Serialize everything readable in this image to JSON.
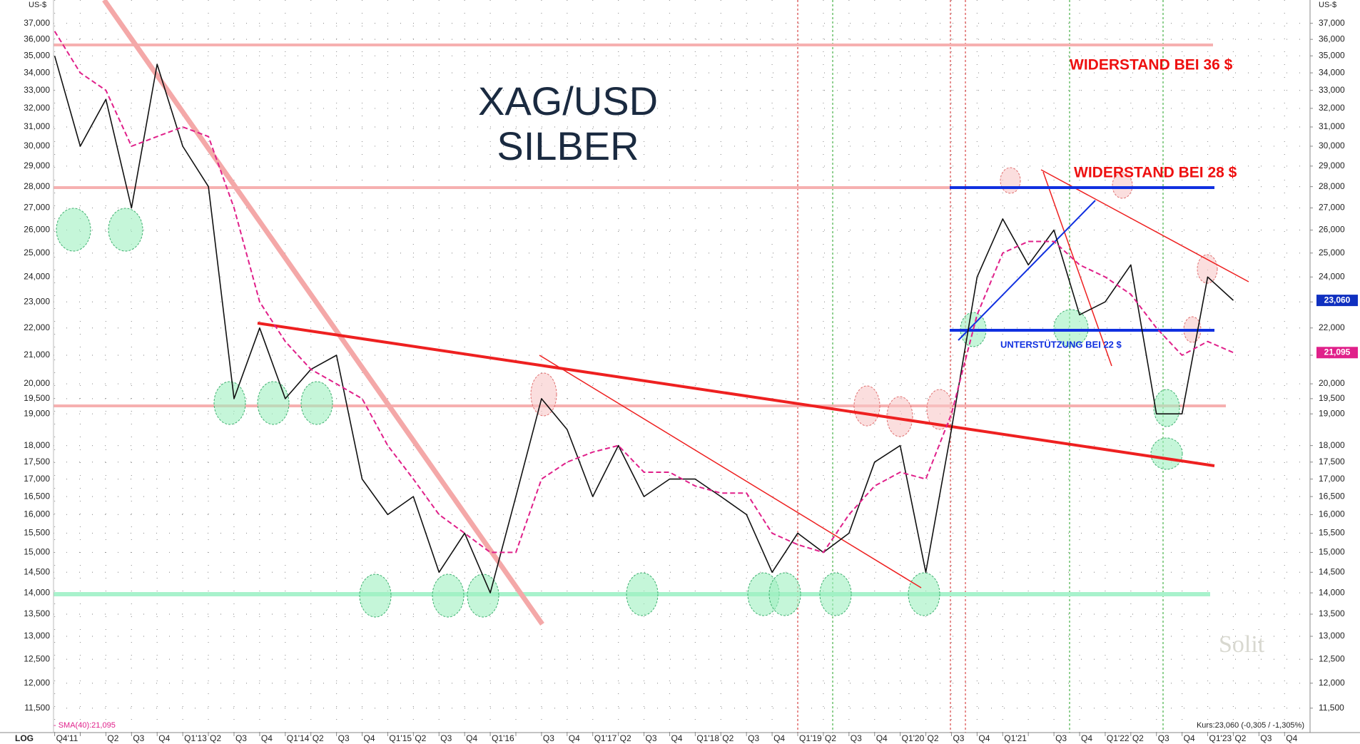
{
  "chart_data": {
    "type": "line",
    "title": "XAG/USD",
    "subtitle": "SILBER",
    "y_unit": "US-$",
    "scale_label": "LOG",
    "log_scale": true,
    "grid": true,
    "ylim": [
      11.03,
      38.5
    ],
    "yticks": [
      {
        "value": 11.5,
        "label": "11,500"
      },
      {
        "value": 12,
        "label": "12,000"
      },
      {
        "value": 12.5,
        "label": "12,500"
      },
      {
        "value": 13,
        "label": "13,000"
      },
      {
        "value": 13.5,
        "label": "13,500"
      },
      {
        "value": 14,
        "label": "14,000"
      },
      {
        "value": 14.5,
        "label": "14,500"
      },
      {
        "value": 15,
        "label": "15,000"
      },
      {
        "value": 15.5,
        "label": "15,500"
      },
      {
        "value": 16,
        "label": "16,000"
      },
      {
        "value": 16.5,
        "label": "16,500"
      },
      {
        "value": 17,
        "label": "17,000"
      },
      {
        "value": 17.5,
        "label": "17,500"
      },
      {
        "value": 18,
        "label": "18,000"
      },
      {
        "value": 19,
        "label": "19,000"
      },
      {
        "value": 19.5,
        "label": "19,500"
      },
      {
        "value": 20,
        "label": "20,000"
      },
      {
        "value": 21,
        "label": "21,000"
      },
      {
        "value": 22,
        "label": "22,000"
      },
      {
        "value": 23,
        "label": "23,000"
      },
      {
        "value": 24,
        "label": "24,000"
      },
      {
        "value": 25,
        "label": "25,000"
      },
      {
        "value": 26,
        "label": "26,000"
      },
      {
        "value": 27,
        "label": "27,000"
      },
      {
        "value": 28,
        "label": "28,000"
      },
      {
        "value": 29,
        "label": "29,000"
      },
      {
        "value": 30,
        "label": "30,000"
      },
      {
        "value": 31,
        "label": "31,000"
      },
      {
        "value": 32,
        "label": "32,000"
      },
      {
        "value": 33,
        "label": "33,000"
      },
      {
        "value": 34,
        "label": "34,000"
      },
      {
        "value": 35,
        "label": "35,000"
      },
      {
        "value": 36,
        "label": "36,000"
      },
      {
        "value": 37,
        "label": "37,000"
      }
    ],
    "categories": [
      "Q4'11",
      null,
      "Q2",
      "Q3",
      "Q4",
      "Q1'13",
      "Q2",
      "Q3",
      "Q4",
      "Q1'14",
      "Q2",
      "Q3",
      "Q4",
      "Q1'15",
      "Q2",
      "Q3",
      "Q4",
      "Q1'16",
      null,
      "Q3",
      "Q4",
      "Q1'17",
      "Q2",
      "Q3",
      "Q4",
      "Q1'18",
      "Q2",
      "Q3",
      "Q4",
      "Q1'19",
      "Q2",
      "Q3",
      "Q4",
      "Q1'20",
      "Q2",
      "Q3",
      "Q4",
      "Q1'21",
      null,
      "Q3",
      "Q4",
      "Q1'22",
      "Q2",
      "Q3",
      "Q4",
      "Q1'23",
      "Q2",
      "Q3",
      "Q4"
    ],
    "series": [
      {
        "color": "#111111",
        "style": "solid",
        "values": [
          35,
          30,
          32.5,
          27,
          34.5,
          30,
          28,
          19.5,
          22,
          19.5,
          20.5,
          21,
          17,
          16,
          16.5,
          14.5,
          15.5,
          14,
          16.5,
          19.5,
          18.5,
          16.5,
          18,
          16.5,
          17,
          17,
          16.5,
          16,
          14.5,
          15.5,
          15,
          15.5,
          17.5,
          18,
          14.5,
          18.5,
          24,
          26.5,
          24.5,
          26,
          22.5,
          23,
          24.5,
          19,
          19,
          24,
          23.06,
          null,
          null
        ]
      },
      {
        "color": "#e0208a",
        "style": "dashed",
        "values": [
          36.5,
          34,
          33,
          30,
          30.5,
          31,
          30.5,
          27,
          23,
          21.5,
          20.5,
          20,
          19.5,
          18,
          17,
          16,
          15.5,
          15,
          15,
          17,
          17.5,
          17.8,
          18,
          17.2,
          17.2,
          16.8,
          16.6,
          16.6,
          15.5,
          15.2,
          15,
          16,
          16.8,
          17.2,
          17,
          19,
          22.5,
          25,
          25.5,
          25.5,
          24.5,
          24,
          23.3,
          22,
          21,
          21.5,
          21.095,
          null,
          null
        ]
      }
    ],
    "annotations": [
      "WIDERSTAND BEI 36 $",
      "WIDERSTAND BEI 28 $",
      "UNTERSTÜTZUNG BEI 22 $"
    ],
    "last_price": {
      "value": 23.06,
      "label": "23,060"
    },
    "sma_last": {
      "value": 21.095,
      "label": "21,095"
    },
    "sma_legend": "- SMA(40):21,095",
    "quote": "Kurs:23,060 (-0,305 / -1,305%)",
    "watermark": "Solit"
  }
}
